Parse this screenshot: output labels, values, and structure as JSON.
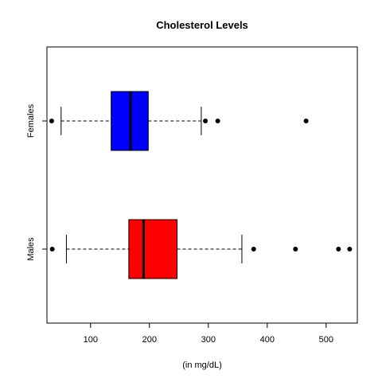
{
  "chart_data": {
    "type": "boxplot",
    "orientation": "horizontal",
    "title": "Cholesterol Levels",
    "xlabel": "(in mg/dL)",
    "ylabel": "",
    "xlim": [
      26,
      553
    ],
    "x_ticks": [
      100,
      200,
      300,
      400,
      500
    ],
    "grid": false,
    "series": [
      {
        "name": "Females",
        "color": "#0000ff",
        "whisker_low": 50,
        "q1": 135,
        "median": 168,
        "q3": 198,
        "whisker_high": 288,
        "outliers": [
          34,
          295,
          316,
          466
        ]
      },
      {
        "name": "Males",
        "color": "#ff0000",
        "whisker_low": 59,
        "q1": 165,
        "median": 190,
        "q3": 247,
        "whisker_high": 357,
        "outliers": [
          35,
          377,
          448,
          521,
          540
        ]
      }
    ]
  }
}
